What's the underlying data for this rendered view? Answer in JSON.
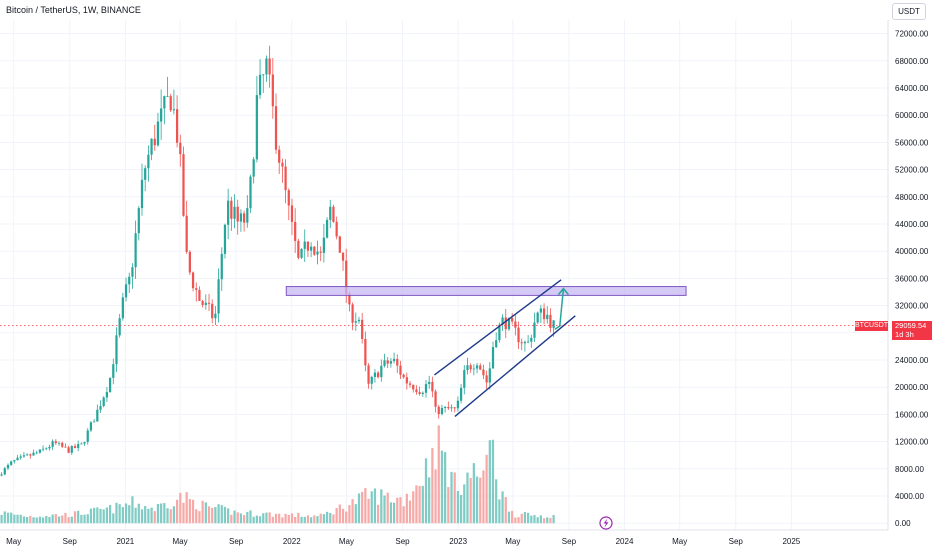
{
  "title": "Bitcoin / TetherUS, 1W, BINANCE",
  "currency_button": "USDT",
  "symbol_tag": "BTCUSDT",
  "last_price": "29059.54",
  "countdown": "1d 3h",
  "colors": {
    "up": "#26a69a",
    "down": "#ef5350",
    "vol_up": "#80cbc4",
    "vol_down": "#f7a9a7",
    "channel": "#1e3a8a",
    "zone_fill": "#c7b8f2",
    "zone_stroke": "#7e57c2",
    "price_line": "#f23645",
    "arrow": "#26a69a"
  },
  "chart_data": {
    "type": "candlestick",
    "y_axis": {
      "range": [
        -1000,
        74000
      ],
      "ticks": [
        "72000.00",
        "68000.00",
        "64000.00",
        "60000.00",
        "56000.00",
        "52000.00",
        "48000.00",
        "44000.00",
        "40000.00",
        "36000.00",
        "32000.00",
        "28000.00",
        "24000.00",
        "20000.00",
        "16000.00",
        "12000.00",
        "8000.00",
        "4000.00",
        "0.00"
      ]
    },
    "x_axis": {
      "range": [
        "2020-04-01",
        "2025-08-01"
      ],
      "ticks": [
        {
          "date": "2020-05-01",
          "label": "May"
        },
        {
          "date": "2020-09-01",
          "label": "Sep"
        },
        {
          "date": "2021-01-01",
          "label": "2021"
        },
        {
          "date": "2021-05-01",
          "label": "May"
        },
        {
          "date": "2021-09-01",
          "label": "Sep"
        },
        {
          "date": "2022-01-01",
          "label": "2022"
        },
        {
          "date": "2022-05-01",
          "label": "May"
        },
        {
          "date": "2022-09-01",
          "label": "Sep"
        },
        {
          "date": "2023-01-01",
          "label": "2023"
        },
        {
          "date": "2023-05-01",
          "label": "May"
        },
        {
          "date": "2023-09-01",
          "label": "Sep"
        },
        {
          "date": "2024-01-01",
          "label": "2024"
        },
        {
          "date": "2024-05-01",
          "label": "May"
        },
        {
          "date": "2024-09-01",
          "label": "Sep"
        },
        {
          "date": "2025-01-01",
          "label": "2025"
        }
      ]
    },
    "price_points": [
      [
        "2020-04-01",
        7000
      ],
      [
        "2020-05-01",
        9000
      ],
      [
        "2020-06-01",
        9800
      ],
      [
        "2020-07-01",
        10500
      ],
      [
        "2020-08-01",
        11800
      ],
      [
        "2020-09-01",
        10700
      ],
      [
        "2020-10-01",
        11500
      ],
      [
        "2020-11-01",
        16000
      ],
      [
        "2020-12-01",
        21000
      ],
      [
        "2021-01-01",
        33000
      ],
      [
        "2021-01-15",
        36000
      ],
      [
        "2021-02-15",
        52000
      ],
      [
        "2021-03-15",
        58000
      ],
      [
        "2021-04-15",
        63000
      ],
      [
        "2021-05-01",
        56000
      ],
      [
        "2021-05-20",
        38000
      ],
      [
        "2021-06-15",
        33000
      ],
      [
        "2021-07-20",
        30000
      ],
      [
        "2021-08-15",
        47000
      ],
      [
        "2021-09-10",
        44000
      ],
      [
        "2021-10-01",
        45000
      ],
      [
        "2021-10-20",
        62000
      ],
      [
        "2021-11-10",
        67000
      ],
      [
        "2021-12-01",
        57000
      ],
      [
        "2021-12-25",
        47000
      ],
      [
        "2022-01-20",
        38000
      ],
      [
        "2022-02-15",
        42000
      ],
      [
        "2022-03-10",
        39000
      ],
      [
        "2022-03-30",
        46000
      ],
      [
        "2022-04-20",
        41000
      ],
      [
        "2022-05-10",
        31000
      ],
      [
        "2022-06-01",
        30000
      ],
      [
        "2022-06-20",
        20000
      ],
      [
        "2022-07-20",
        23000
      ],
      [
        "2022-08-15",
        24000
      ],
      [
        "2022-09-10",
        21000
      ],
      [
        "2022-10-15",
        19500
      ],
      [
        "2022-11-05",
        21000
      ],
      [
        "2022-11-15",
        16500
      ],
      [
        "2022-12-15",
        16800
      ],
      [
        "2023-01-01",
        16600
      ],
      [
        "2023-01-20",
        22500
      ],
      [
        "2023-02-15",
        24000
      ],
      [
        "2023-03-10",
        20500
      ],
      [
        "2023-03-25",
        27500
      ],
      [
        "2023-04-15",
        30000
      ],
      [
        "2023-05-10",
        28000
      ],
      [
        "2023-06-05",
        26000
      ],
      [
        "2023-06-25",
        30500
      ],
      [
        "2023-07-15",
        31000
      ],
      [
        "2023-08-01",
        29059.54
      ]
    ],
    "volume_profile": [
      [
        "2020-04-01",
        1800
      ],
      [
        "2020-06-01",
        1200
      ],
      [
        "2020-09-01",
        1500
      ],
      [
        "2020-12-01",
        2500
      ],
      [
        "2021-01-15",
        3500
      ],
      [
        "2021-03-01",
        2500
      ],
      [
        "2021-05-01",
        4500
      ],
      [
        "2021-06-15",
        3000
      ],
      [
        "2021-09-01",
        1800
      ],
      [
        "2021-12-01",
        1500
      ],
      [
        "2022-03-01",
        1200
      ],
      [
        "2022-05-10",
        3500
      ],
      [
        "2022-06-20",
        5000
      ],
      [
        "2022-09-01",
        4000
      ],
      [
        "2022-10-15",
        8500
      ],
      [
        "2022-11-10",
        14000
      ],
      [
        "2022-11-25",
        12000
      ],
      [
        "2022-12-20",
        6500
      ],
      [
        "2023-01-15",
        8000
      ],
      [
        "2023-03-01",
        9000
      ],
      [
        "2023-03-15",
        17000
      ],
      [
        "2023-03-25",
        6000
      ],
      [
        "2023-05-01",
        1500
      ],
      [
        "2023-08-01",
        1200
      ]
    ],
    "annotations": {
      "resistance_zone": {
        "from": "2021-12-20",
        "to": "2024-05-15",
        "low": 33500,
        "high": 34800
      },
      "channel_upper": [
        [
          "2022-11-10",
          21800
        ],
        [
          "2023-08-15",
          35800
        ]
      ],
      "channel_lower": [
        [
          "2022-12-25",
          15700
        ],
        [
          "2023-09-15",
          30500
        ]
      ],
      "arrow": [
        [
          "2023-08-01",
          28500
        ],
        [
          "2023-08-12",
          29000
        ],
        [
          "2023-08-20",
          34500
        ]
      ],
      "last_price": 29059.54
    }
  }
}
